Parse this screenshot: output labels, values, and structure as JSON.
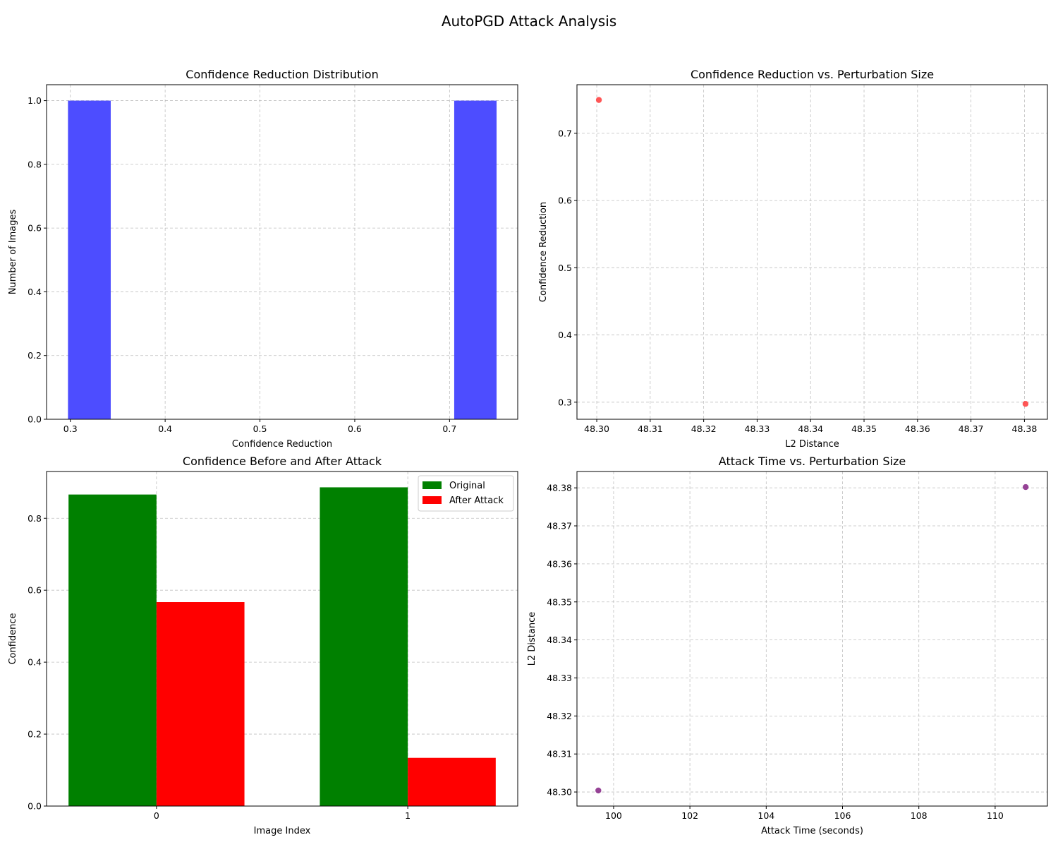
{
  "figure": {
    "title": "AutoPGD Attack Analysis"
  },
  "chart_data": [
    {
      "id": "hist",
      "type": "bar",
      "title": "Confidence Reduction Distribution",
      "xlabel": "Confidence Reduction",
      "ylabel": "Number of Images",
      "xlim": [
        0.2749,
        0.7719
      ],
      "ylim": [
        0,
        1.05
      ],
      "xticks": [
        0.3,
        0.4,
        0.5,
        0.6,
        0.7
      ],
      "xtick_labels": [
        "0.3",
        "0.4",
        "0.5",
        "0.6",
        "0.7"
      ],
      "yticks": [
        0,
        0.2,
        0.4,
        0.6,
        0.8,
        1.0
      ],
      "ytick_labels": [
        "0.0",
        "0.2",
        "0.4",
        "0.6",
        "0.8",
        "1.0"
      ],
      "grid": true,
      "color": "#4d4dff",
      "bins": [
        {
          "x0": 0.2975,
          "x1": 0.3426,
          "count": 1
        },
        {
          "x0": 0.7049,
          "x1": 0.7496,
          "count": 1
        }
      ]
    },
    {
      "id": "scatter1",
      "type": "scatter",
      "title": "Confidence Reduction vs. Perturbation Size",
      "xlabel": "L2 Distance",
      "ylabel": "Confidence Reduction",
      "xlim": [
        48.2963,
        48.3843
      ],
      "ylim": [
        0.2746,
        0.7723
      ],
      "xticks": [
        48.3,
        48.31,
        48.32,
        48.33,
        48.34,
        48.35,
        48.36,
        48.37,
        48.38
      ],
      "xtick_labels": [
        "48.30",
        "48.31",
        "48.32",
        "48.33",
        "48.34",
        "48.35",
        "48.36",
        "48.37",
        "48.38"
      ],
      "yticks": [
        0.3,
        0.4,
        0.5,
        0.6,
        0.7
      ],
      "ytick_labels": [
        "0.3",
        "0.4",
        "0.5",
        "0.6",
        "0.7"
      ],
      "grid": true,
      "color": "#ff4444",
      "points": [
        {
          "x": 48.3004,
          "y": 0.7496
        },
        {
          "x": 48.3802,
          "y": 0.2975
        }
      ]
    },
    {
      "id": "bars",
      "type": "bar",
      "title": "Confidence Before and After Attack",
      "xlabel": "Image Index",
      "ylabel": "Confidence",
      "categories": [
        "0",
        "1"
      ],
      "ylim": [
        0,
        0.93
      ],
      "yticks": [
        0,
        0.2,
        0.4,
        0.6,
        0.8
      ],
      "ytick_labels": [
        "0.0",
        "0.2",
        "0.4",
        "0.6",
        "0.8"
      ],
      "grid": true,
      "legend": "top-right",
      "series": [
        {
          "name": "Original",
          "color": "#008000",
          "values": [
            0.866,
            0.886
          ]
        },
        {
          "name": "After Attack",
          "color": "#ff0000",
          "values": [
            0.567,
            0.134
          ]
        }
      ]
    },
    {
      "id": "scatter2",
      "type": "scatter",
      "title": "Attack Time vs. Perturbation Size",
      "xlabel": "Attack Time (seconds)",
      "ylabel": "L2 Distance",
      "xlim": [
        99.04,
        111.37
      ],
      "ylim": [
        48.2963,
        48.3843
      ],
      "xticks": [
        100,
        102,
        104,
        106,
        108,
        110
      ],
      "xtick_labels": [
        "100",
        "102",
        "104",
        "106",
        "108",
        "110"
      ],
      "yticks": [
        48.3,
        48.31,
        48.32,
        48.33,
        48.34,
        48.35,
        48.36,
        48.37,
        48.38
      ],
      "ytick_labels": [
        "48.30",
        "48.31",
        "48.32",
        "48.33",
        "48.34",
        "48.35",
        "48.36",
        "48.37",
        "48.38"
      ],
      "grid": true,
      "color": "#8b2f8b",
      "points": [
        {
          "x": 99.6,
          "y": 48.3004
        },
        {
          "x": 110.8,
          "y": 48.3802
        }
      ]
    }
  ]
}
